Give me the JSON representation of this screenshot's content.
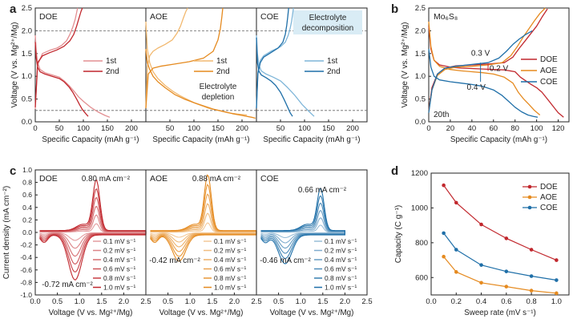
{
  "panels": [
    {
      "letter": "a"
    },
    {
      "letter": "b"
    },
    {
      "letter": "c"
    },
    {
      "letter": "d"
    }
  ],
  "colors": {
    "DOE": "#c1272d",
    "AOE": "#e58a1f",
    "COE": "#1f6fa8",
    "DOE_light": "#e38f92",
    "AOE_light": "#f2b970",
    "COE_light": "#7fb6d9",
    "callout_bg": "#d9ecf5"
  },
  "chart_data": [
    {
      "id": "a",
      "type": "line",
      "ylabel": "Voltage (V vs. Mg²⁺/Mg)",
      "xlabel": "Specific Capacity (mAh g⁻¹)",
      "ylim": [
        0,
        2.5
      ],
      "xlim": [
        0,
        230
      ],
      "yticks": [
        "0.0",
        "0.5",
        "1.0",
        "1.5",
        "2.0",
        "2.5"
      ],
      "xticks": [
        "0",
        "50",
        "100",
        "150",
        "200"
      ],
      "reference_lines": [
        0.25,
        2.0
      ],
      "subpanels": [
        {
          "name": "DOE",
          "series": [
            {
              "name": "1st",
              "shade": "light",
              "x": [
                0,
                2,
                5,
                10,
                20,
                35,
                50,
                60,
                70,
                80,
                90,
                100,
                115,
                130,
                145,
                155
              ],
              "y": [
                1.9,
                1.55,
                1.3,
                1.15,
                1.08,
                1.03,
                0.98,
                0.9,
                0.8,
                0.68,
                0.55,
                0.45,
                0.32,
                0.22,
                0.14,
                0.1
              ]
            },
            {
              "name": "1st-charge",
              "shade": "light",
              "x": [
                0,
                5,
                15,
                30,
                45,
                55,
                65,
                72,
                78,
                83,
                86,
                88
              ],
              "y": [
                0.28,
                1.25,
                1.5,
                1.57,
                1.62,
                1.68,
                1.78,
                1.92,
                2.08,
                2.25,
                2.4,
                2.5
              ]
            },
            {
              "name": "2nd",
              "shade": "dark",
              "x": [
                0,
                2,
                5,
                10,
                20,
                35,
                50,
                60,
                70,
                78,
                86,
                92,
                98,
                105,
                110
              ],
              "y": [
                1.75,
                1.4,
                1.2,
                1.1,
                1.05,
                1.0,
                0.95,
                0.88,
                0.77,
                0.65,
                0.5,
                0.38,
                0.27,
                0.18,
                0.12
              ]
            },
            {
              "name": "2nd-charge",
              "shade": "dark",
              "x": [
                0,
                5,
                15,
                30,
                45,
                60,
                72,
                80,
                86,
                91,
                95,
                98
              ],
              "y": [
                0.32,
                1.3,
                1.45,
                1.52,
                1.58,
                1.66,
                1.78,
                1.92,
                2.1,
                2.28,
                2.42,
                2.5
              ]
            }
          ]
        },
        {
          "name": "AOE",
          "annotation": "Electrolyte\ndepletion",
          "series": [
            {
              "name": "1st",
              "shade": "light",
              "x": [
                0,
                3,
                8,
                15,
                25,
                40,
                55,
                70,
                85,
                100,
                115,
                130,
                150,
                170,
                190,
                210
              ],
              "y": [
                2.2,
                1.6,
                1.3,
                1.1,
                0.95,
                0.8,
                0.68,
                0.58,
                0.5,
                0.42,
                0.36,
                0.3,
                0.25,
                0.2,
                0.17,
                0.15
              ]
            },
            {
              "name": "1st-charge",
              "shade": "light",
              "x": [
                0,
                3,
                8,
                15,
                25,
                40,
                55,
                65,
                72,
                78,
                83,
                87
              ],
              "y": [
                0.3,
                1.2,
                1.45,
                1.55,
                1.62,
                1.7,
                1.8,
                1.95,
                2.1,
                2.28,
                2.42,
                2.5
              ]
            },
            {
              "name": "2nd",
              "shade": "dark",
              "x": [
                0,
                3,
                8,
                15,
                25,
                40,
                60,
                80,
                100,
                120,
                140,
                160,
                180,
                200,
                220,
                228
              ],
              "y": [
                1.6,
                1.3,
                1.15,
                1.0,
                0.88,
                0.75,
                0.6,
                0.5,
                0.42,
                0.35,
                0.28,
                0.23,
                0.18,
                0.14,
                0.1,
                0.08
              ]
            },
            {
              "name": "2nd-charge",
              "shade": "dark",
              "x": [
                0,
                5,
                15,
                30,
                60,
                90,
                120,
                140,
                150,
                155,
                158,
                160
              ],
              "y": [
                0.3,
                1.05,
                1.18,
                1.22,
                1.27,
                1.32,
                1.4,
                1.55,
                1.8,
                2.05,
                2.3,
                2.5
              ]
            }
          ]
        },
        {
          "name": "COE",
          "annotation": "Electrolyte\ndecomposition",
          "series": [
            {
              "name": "1st",
              "shade": "light",
              "x": [
                0,
                2,
                5,
                10,
                20,
                35,
                50,
                65,
                80,
                95,
                110,
                120
              ],
              "y": [
                1.9,
                1.5,
                1.25,
                1.12,
                1.05,
                0.98,
                0.9,
                0.75,
                0.58,
                0.38,
                0.22,
                0.12
              ]
            },
            {
              "name": "1st-charge",
              "shade": "light",
              "x": [
                0,
                3,
                8,
                15,
                30,
                50,
                60,
                66,
                70,
                73,
                75,
                77
              ],
              "y": [
                0.3,
                1.1,
                1.35,
                1.45,
                1.55,
                1.65,
                1.75,
                1.9,
                2.05,
                2.2,
                2.35,
                2.5
              ]
            },
            {
              "name": "2nd",
              "shade": "dark",
              "x": [
                0,
                2,
                5,
                10,
                20,
                30,
                40,
                50,
                58,
                65,
                70,
                75
              ],
              "y": [
                1.85,
                1.3,
                1.12,
                1.03,
                0.97,
                0.9,
                0.8,
                0.65,
                0.48,
                0.32,
                0.2,
                0.12
              ]
            },
            {
              "name": "2nd-charge",
              "shade": "dark",
              "x": [
                0,
                3,
                8,
                15,
                30,
                45,
                55,
                60,
                63,
                65,
                67
              ],
              "y": [
                0.3,
                1.05,
                1.3,
                1.42,
                1.52,
                1.62,
                1.75,
                1.92,
                2.12,
                2.3,
                2.5
              ]
            }
          ]
        }
      ],
      "legend": [
        "1st",
        "2nd"
      ]
    },
    {
      "id": "b",
      "type": "line",
      "label": "Mo₆S₈",
      "cycle_label": "20th",
      "ylabel": "Voltage (V vs. Mg²⁺/Mg)",
      "xlabel": "Specific Capacity (mAh g⁻¹)",
      "ylim": [
        0,
        2.5
      ],
      "xlim": [
        0,
        130
      ],
      "yticks": [
        "0.0",
        "0.5",
        "1.0",
        "1.5",
        "2.0",
        "2.5"
      ],
      "xticks": [
        "0",
        "20",
        "40",
        "60",
        "80",
        "100",
        "120"
      ],
      "legend": [
        "DOE",
        "AOE",
        "COE"
      ],
      "annotations": [
        "0.3 V",
        "0.2 V",
        "0.4 V"
      ],
      "series": [
        {
          "name": "DOE",
          "x": [
            0,
            2,
            5,
            10,
            20,
            30,
            40,
            50,
            60,
            70,
            80,
            85,
            90,
            95,
            100,
            105,
            110,
            115,
            120,
            125
          ],
          "y": [
            2.1,
            1.6,
            1.35,
            1.25,
            1.2,
            1.18,
            1.17,
            1.16,
            1.15,
            1.14,
            1.1,
            0.98,
            0.9,
            0.82,
            0.75,
            0.65,
            0.5,
            0.35,
            0.2,
            0.1
          ]
        },
        {
          "name": "DOE-charge",
          "x": [
            0,
            3,
            8,
            15,
            25,
            40,
            55,
            70,
            78,
            84,
            90,
            95,
            100,
            105,
            110
          ],
          "y": [
            0.25,
            0.75,
            1.05,
            1.18,
            1.23,
            1.25,
            1.27,
            1.3,
            1.42,
            1.62,
            1.8,
            1.95,
            2.1,
            2.3,
            2.48
          ]
        },
        {
          "name": "AOE",
          "x": [
            0,
            2,
            5,
            10,
            20,
            30,
            40,
            50,
            60,
            70,
            78,
            83,
            88,
            93,
            98,
            103
          ],
          "y": [
            2.2,
            1.65,
            1.35,
            1.22,
            1.15,
            1.12,
            1.1,
            1.08,
            1.05,
            0.98,
            0.85,
            0.65,
            0.5,
            0.38,
            0.25,
            0.15
          ]
        },
        {
          "name": "AOE-charge",
          "x": [
            0,
            3,
            8,
            15,
            25,
            40,
            55,
            68,
            76,
            82,
            88,
            93,
            98,
            103,
            108
          ],
          "y": [
            0.22,
            0.7,
            1.02,
            1.15,
            1.2,
            1.22,
            1.25,
            1.3,
            1.45,
            1.65,
            1.88,
            2.05,
            2.22,
            2.38,
            2.5
          ]
        },
        {
          "name": "COE",
          "x": [
            0,
            2,
            5,
            10,
            20,
            30,
            40,
            50,
            60,
            68,
            74,
            80,
            86,
            92,
            97,
            101
          ],
          "y": [
            1.6,
            1.2,
            1.0,
            0.92,
            0.88,
            0.85,
            0.82,
            0.78,
            0.7,
            0.58,
            0.45,
            0.32,
            0.22,
            0.15,
            0.12,
            0.1
          ]
        },
        {
          "name": "COE-charge",
          "x": [
            0,
            3,
            8,
            15,
            25,
            40,
            55,
            65,
            72,
            78,
            84,
            90,
            96
          ],
          "y": [
            0.2,
            0.7,
            1.05,
            1.18,
            1.22,
            1.26,
            1.3,
            1.4,
            1.55,
            1.7,
            1.82,
            1.92,
            2.0
          ]
        }
      ]
    },
    {
      "id": "c",
      "type": "line",
      "ylabel": "Current density (mA cm⁻²)",
      "xlabel": "Voltage (V vs. Mg²⁺/Mg)",
      "ylim": [
        -1.0,
        1.0
      ],
      "xlim": [
        0,
        2.5
      ],
      "yticks": [
        "-1.0",
        "-0.8",
        "-0.6",
        "-0.4",
        "-0.2",
        "0.0",
        "0.2",
        "0.4",
        "0.6",
        "0.8",
        "1.0"
      ],
      "xticks": [
        "0.0",
        "0.5",
        "1.0",
        "1.5",
        "2.0",
        "2.5"
      ],
      "legend": [
        "0.1 mV s⁻¹",
        "0.2 mV s⁻¹",
        "0.4 mV s⁻¹",
        "0.6 mV s⁻¹",
        "0.8 mV s⁻¹",
        "1.0 mV s⁻¹"
      ],
      "sweep_rates": [
        0.1,
        0.2,
        0.4,
        0.6,
        0.8,
        1.0
      ],
      "subpanels": [
        {
          "name": "DOE",
          "peak_anodic": 0.8,
          "peak_cathodic": -0.72,
          "anodic_pos": 1.38,
          "cathodic_pos": 0.9,
          "xmax": 2.5,
          "label_top": "0.80 mA cm⁻²",
          "label_bottom": "-0.72 mA cm⁻²"
        },
        {
          "name": "AOE",
          "peak_anodic": 0.88,
          "peak_cathodic": -0.42,
          "anodic_pos": 1.4,
          "cathodic_pos": 0.75,
          "xmax": 2.5,
          "label_top": "0.88 mA cm⁻²",
          "label_bottom": "-0.42 mA cm⁻²"
        },
        {
          "name": "COE",
          "peak_anodic": 0.66,
          "peak_cathodic": -0.46,
          "anodic_pos": 1.45,
          "cathodic_pos": 0.65,
          "xmax": 2.0,
          "label_top": "0.66 mA cm⁻²",
          "label_bottom": "-0.46 mA cm⁻²"
        }
      ]
    },
    {
      "id": "d",
      "type": "line",
      "ylabel": "Capacity (C g⁻¹)",
      "xlabel": "Sweep rate (mV s⁻¹)",
      "ylim": [
        500,
        1200
      ],
      "xlim": [
        0,
        1.1
      ],
      "yticks": [
        "600",
        "800",
        "1000",
        "1200"
      ],
      "xticks": [
        "0.0",
        "0.2",
        "0.4",
        "0.6",
        "0.8",
        "1.0"
      ],
      "legend": [
        "DOE",
        "AOE",
        "COE"
      ],
      "x": [
        0.1,
        0.2,
        0.4,
        0.6,
        0.8,
        1.0
      ],
      "series": [
        {
          "name": "DOE",
          "values": [
            1130,
            1030,
            905,
            825,
            760,
            700
          ]
        },
        {
          "name": "AOE",
          "values": [
            720,
            632,
            570,
            548,
            525,
            510
          ]
        },
        {
          "name": "COE",
          "values": [
            855,
            760,
            672,
            635,
            608,
            585
          ]
        }
      ]
    }
  ]
}
